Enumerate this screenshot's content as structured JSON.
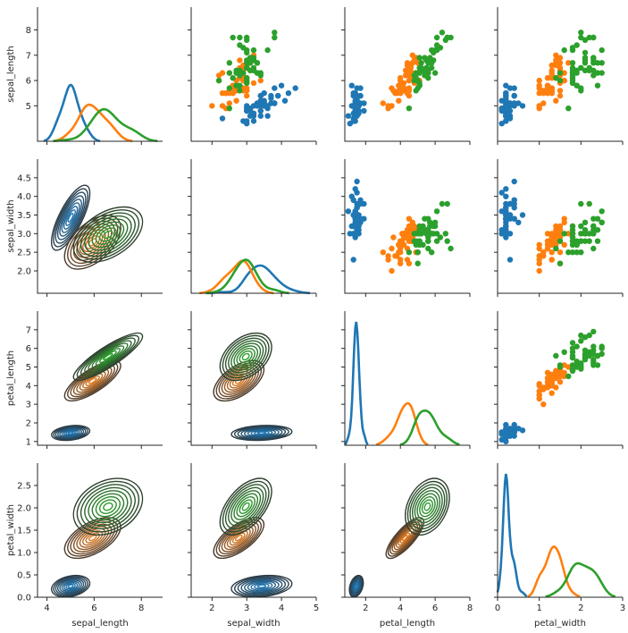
{
  "chart_data": {
    "type": "scatter",
    "title": "",
    "variables": [
      "sepal_length",
      "sepal_width",
      "petal_length",
      "petal_width"
    ],
    "axis_labels": {
      "rows": [
        "sepal_length",
        "sepal_width",
        "petal_length",
        "petal_width"
      ],
      "cols": [
        "sepal_length",
        "sepal_width",
        "petal_length",
        "petal_width"
      ]
    },
    "ranges": {
      "sepal_length": [
        3.6,
        8.9
      ],
      "sepal_width": [
        1.4,
        5.0
      ],
      "petal_length": [
        0.8,
        8.0
      ],
      "petal_width": [
        0.0,
        3.0
      ]
    },
    "row_ticks": {
      "sepal_length": [
        5,
        6,
        7,
        8
      ],
      "sepal_width": [
        2.0,
        2.5,
        3.0,
        3.5,
        4.0,
        4.5
      ],
      "petal_length": [
        1,
        2,
        3,
        4,
        5,
        6,
        7
      ],
      "petal_width": [
        0.0,
        0.5,
        1.0,
        1.5,
        2.0,
        2.5
      ]
    },
    "row_tick_labels": {
      "sepal_length": [
        "5",
        "6",
        "7",
        "8"
      ],
      "sepal_width": [
        "2.0",
        "2.5",
        "3.0",
        "3.5",
        "4.0",
        "4.5"
      ],
      "petal_length": [
        "1",
        "2",
        "3",
        "4",
        "5",
        "6",
        "7"
      ],
      "petal_width": [
        "0.0",
        "0.5",
        "1.0",
        "1.5",
        "2.0",
        "2.5"
      ]
    },
    "col_ticks": {
      "sepal_length": [
        4,
        6,
        8
      ],
      "sepal_width": [
        2,
        3,
        4,
        5
      ],
      "petal_length": [
        2,
        4,
        6,
        8
      ],
      "petal_width": [
        0,
        1,
        2,
        3
      ]
    },
    "col_tick_labels": {
      "sepal_length": [
        "4",
        "6",
        "8"
      ],
      "sepal_width": [
        "2",
        "3",
        "4",
        "5"
      ],
      "petal_length": [
        "2",
        "4",
        "6",
        "8"
      ],
      "petal_width": [
        "0",
        "1",
        "2",
        "3"
      ]
    },
    "grid": false,
    "legend": "none",
    "upper": "scatter",
    "diag": "kde",
    "lower": "kde contour",
    "colors": {
      "setosa": "#1f77b4",
      "versicolor": "#ff7f0e",
      "virginica": "#2ca02c"
    },
    "contour_colors": {
      "setosa": "#1f77b4",
      "versicolor": "#e07b1f",
      "virginica": "#2ca02c"
    },
    "series": [
      {
        "color": "#1f77b4",
        "sepal_length": [
          5.1,
          4.9,
          4.7,
          4.6,
          5.0,
          5.4,
          4.6,
          5.0,
          4.4,
          4.9,
          5.4,
          4.8,
          4.8,
          4.3,
          5.8,
          5.7,
          5.4,
          5.1,
          5.7,
          5.1,
          5.4,
          5.1,
          4.6,
          5.1,
          4.8,
          5.0,
          5.0,
          5.2,
          5.2,
          4.7,
          4.8,
          5.4,
          5.2,
          5.5,
          4.9,
          5.0,
          5.5,
          4.9,
          4.4,
          5.1,
          5.0,
          4.5,
          4.4,
          5.0,
          5.1,
          4.8,
          5.1,
          4.6,
          5.3,
          5.0
        ],
        "sepal_width": [
          3.5,
          3.0,
          3.2,
          3.1,
          3.6,
          3.9,
          3.4,
          3.4,
          2.9,
          3.1,
          3.7,
          3.4,
          3.0,
          3.0,
          4.0,
          4.4,
          3.9,
          3.5,
          3.8,
          3.8,
          3.4,
          3.7,
          3.6,
          3.3,
          3.4,
          3.0,
          3.4,
          3.5,
          3.4,
          3.2,
          3.1,
          3.4,
          4.1,
          4.2,
          3.1,
          3.2,
          3.5,
          3.6,
          3.0,
          3.4,
          3.5,
          2.3,
          3.2,
          3.5,
          3.8,
          3.0,
          3.8,
          3.2,
          3.7,
          3.3
        ],
        "petal_length": [
          1.4,
          1.4,
          1.3,
          1.5,
          1.4,
          1.7,
          1.4,
          1.5,
          1.4,
          1.5,
          1.5,
          1.6,
          1.4,
          1.1,
          1.2,
          1.5,
          1.3,
          1.4,
          1.7,
          1.5,
          1.7,
          1.5,
          1.0,
          1.7,
          1.9,
          1.6,
          1.6,
          1.5,
          1.4,
          1.6,
          1.6,
          1.5,
          1.5,
          1.4,
          1.5,
          1.2,
          1.3,
          1.4,
          1.3,
          1.5,
          1.3,
          1.3,
          1.3,
          1.6,
          1.9,
          1.4,
          1.6,
          1.4,
          1.5,
          1.4
        ],
        "petal_width": [
          0.2,
          0.2,
          0.2,
          0.2,
          0.2,
          0.4,
          0.3,
          0.2,
          0.2,
          0.1,
          0.2,
          0.2,
          0.1,
          0.1,
          0.2,
          0.4,
          0.4,
          0.3,
          0.3,
          0.3,
          0.2,
          0.4,
          0.2,
          0.5,
          0.2,
          0.2,
          0.4,
          0.2,
          0.2,
          0.2,
          0.2,
          0.4,
          0.1,
          0.2,
          0.2,
          0.2,
          0.2,
          0.1,
          0.2,
          0.2,
          0.3,
          0.3,
          0.2,
          0.6,
          0.4,
          0.3,
          0.2,
          0.2,
          0.2,
          0.2
        ]
      },
      {
        "color": "#ff7f0e",
        "sepal_length": [
          7.0,
          6.4,
          6.9,
          5.5,
          6.5,
          5.7,
          6.3,
          4.9,
          6.6,
          5.2,
          5.0,
          5.9,
          6.0,
          6.1,
          5.6,
          6.7,
          5.6,
          5.8,
          6.2,
          5.6,
          5.9,
          6.1,
          6.3,
          6.1,
          6.4,
          6.6,
          6.8,
          6.7,
          6.0,
          5.7,
          5.5,
          5.5,
          5.8,
          6.0,
          5.4,
          6.0,
          6.7,
          6.3,
          5.6,
          5.5,
          5.5,
          6.1,
          5.8,
          5.0,
          5.6,
          5.7,
          5.7,
          6.2,
          5.1,
          5.7
        ],
        "sepal_width": [
          3.2,
          3.2,
          3.1,
          2.3,
          2.8,
          2.8,
          3.3,
          2.4,
          2.9,
          2.7,
          2.0,
          3.0,
          2.2,
          2.9,
          2.9,
          3.1,
          3.0,
          2.7,
          2.2,
          2.5,
          3.2,
          2.8,
          2.5,
          2.8,
          2.9,
          3.0,
          2.8,
          3.0,
          2.9,
          2.6,
          2.4,
          2.4,
          2.7,
          2.7,
          3.0,
          3.4,
          3.1,
          2.3,
          3.0,
          2.5,
          2.6,
          3.0,
          2.6,
          2.3,
          2.7,
          3.0,
          2.9,
          2.9,
          2.5,
          2.8
        ],
        "petal_length": [
          4.7,
          4.5,
          4.9,
          4.0,
          4.6,
          4.5,
          4.7,
          3.3,
          4.6,
          3.9,
          3.5,
          4.2,
          4.0,
          4.7,
          3.6,
          4.4,
          4.5,
          4.1,
          4.5,
          3.9,
          4.8,
          4.0,
          4.9,
          4.7,
          4.3,
          4.4,
          4.8,
          5.0,
          4.5,
          3.5,
          3.8,
          3.7,
          3.9,
          5.1,
          4.5,
          4.5,
          4.7,
          4.4,
          4.1,
          4.0,
          4.4,
          4.6,
          4.0,
          3.3,
          4.2,
          4.2,
          4.2,
          4.3,
          3.0,
          4.1
        ],
        "petal_width": [
          1.4,
          1.5,
          1.5,
          1.3,
          1.5,
          1.3,
          1.6,
          1.0,
          1.3,
          1.4,
          1.0,
          1.5,
          1.0,
          1.4,
          1.3,
          1.4,
          1.5,
          1.0,
          1.5,
          1.1,
          1.8,
          1.3,
          1.5,
          1.2,
          1.3,
          1.4,
          1.4,
          1.7,
          1.5,
          1.0,
          1.1,
          1.0,
          1.2,
          1.6,
          1.5,
          1.6,
          1.5,
          1.3,
          1.3,
          1.3,
          1.2,
          1.4,
          1.2,
          1.0,
          1.3,
          1.2,
          1.3,
          1.3,
          1.1,
          1.3
        ]
      },
      {
        "color": "#2ca02c",
        "sepal_length": [
          6.3,
          5.8,
          7.1,
          6.3,
          6.5,
          7.6,
          4.9,
          7.3,
          6.7,
          7.2,
          6.5,
          6.4,
          6.8,
          5.7,
          5.8,
          6.4,
          6.5,
          7.7,
          7.7,
          6.0,
          6.9,
          5.6,
          7.7,
          6.3,
          6.7,
          7.2,
          6.2,
          6.1,
          6.4,
          7.2,
          7.4,
          7.9,
          6.4,
          6.3,
          6.1,
          7.7,
          6.3,
          6.4,
          6.0,
          6.9,
          6.7,
          6.9,
          5.8,
          6.8,
          6.7,
          6.7,
          6.3,
          6.5,
          6.2,
          5.9
        ],
        "sepal_width": [
          3.3,
          2.7,
          3.0,
          2.9,
          3.0,
          3.0,
          2.5,
          2.9,
          2.5,
          3.6,
          3.2,
          2.7,
          3.0,
          2.5,
          2.8,
          3.2,
          3.0,
          3.8,
          2.6,
          2.2,
          3.2,
          2.8,
          2.8,
          2.7,
          3.3,
          3.2,
          2.8,
          3.0,
          2.8,
          3.0,
          2.8,
          3.8,
          2.8,
          2.8,
          2.6,
          3.0,
          3.4,
          3.1,
          3.0,
          3.1,
          3.1,
          3.1,
          2.7,
          3.2,
          3.3,
          3.0,
          2.5,
          3.0,
          3.4,
          3.0
        ],
        "petal_length": [
          6.0,
          5.1,
          5.9,
          5.6,
          5.8,
          6.6,
          4.5,
          6.3,
          5.8,
          6.1,
          5.1,
          5.3,
          5.5,
          5.0,
          5.1,
          5.3,
          5.5,
          6.7,
          6.9,
          5.0,
          5.7,
          4.9,
          6.7,
          4.9,
          5.7,
          6.0,
          4.8,
          4.9,
          5.6,
          5.8,
          6.1,
          6.4,
          5.6,
          5.1,
          5.6,
          6.1,
          5.6,
          5.5,
          4.8,
          5.4,
          5.6,
          5.1,
          5.1,
          5.9,
          5.7,
          5.2,
          5.0,
          5.2,
          5.4,
          5.1
        ],
        "petal_width": [
          2.5,
          1.9,
          2.1,
          1.8,
          2.2,
          2.1,
          1.7,
          1.8,
          1.8,
          2.5,
          2.0,
          1.9,
          2.1,
          2.0,
          2.4,
          2.3,
          1.8,
          2.2,
          2.3,
          1.5,
          2.3,
          2.0,
          2.0,
          1.8,
          2.1,
          1.8,
          1.8,
          1.8,
          2.1,
          1.6,
          1.9,
          2.0,
          2.2,
          1.5,
          1.4,
          2.3,
          2.4,
          1.8,
          1.8,
          2.1,
          2.4,
          2.3,
          1.9,
          2.3,
          2.5,
          2.3,
          1.9,
          2.0,
          2.3,
          1.8
        ]
      }
    ]
  }
}
